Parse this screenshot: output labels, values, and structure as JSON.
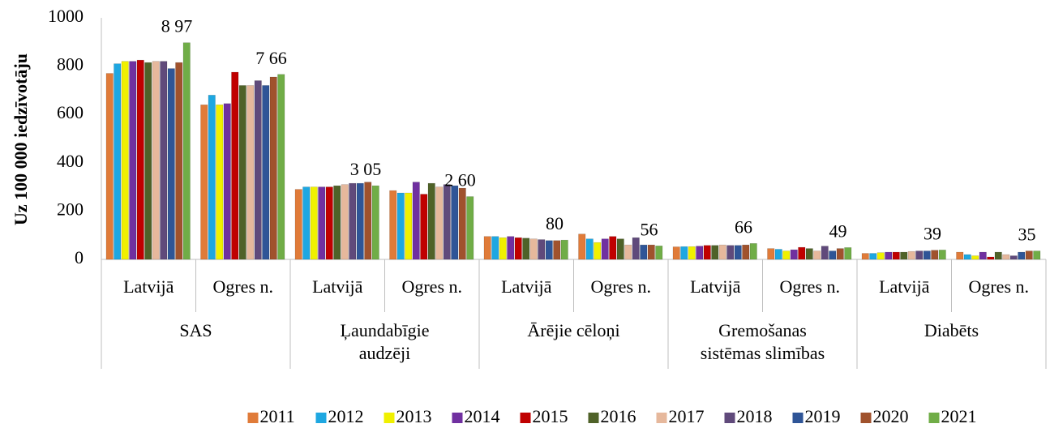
{
  "chart_data": {
    "type": "bar",
    "y_label": "Uz 100 000 iedzīvotāju",
    "categories": [
      "Latvijā",
      "Ogres n.",
      "Latvijā",
      "Ogres n.",
      "Latvijā",
      "Ogres n.",
      "Latvijā",
      "Ogres n.",
      "Latvijā",
      "Ogres n."
    ],
    "groups": [
      [
        "SAS"
      ],
      [
        "Ļaundabīgie",
        "audzēji"
      ],
      [
        "Ārējie cēloņi"
      ],
      [
        "Gremošanas",
        "sistēmas slimības"
      ],
      [
        "Diabēts"
      ]
    ],
    "series": [
      {
        "name": "2011",
        "color": "#e07b39",
        "values": [
          770,
          640,
          290,
          285,
          95,
          105,
          52,
          45,
          25,
          30
        ]
      },
      {
        "name": "2012",
        "color": "#1ea7e1",
        "values": [
          810,
          680,
          300,
          275,
          95,
          85,
          53,
          42,
          25,
          20
        ]
      },
      {
        "name": "2013",
        "color": "#f0f000",
        "values": [
          820,
          640,
          300,
          275,
          90,
          70,
          53,
          35,
          28,
          15
        ]
      },
      {
        "name": "2014",
        "color": "#7030a0",
        "values": [
          820,
          645,
          300,
          320,
          95,
          85,
          55,
          40,
          30,
          30
        ]
      },
      {
        "name": "2015",
        "color": "#c00000",
        "values": [
          825,
          775,
          300,
          270,
          90,
          95,
          58,
          50,
          30,
          10
        ]
      },
      {
        "name": "2016",
        "color": "#4f6228",
        "values": [
          815,
          720,
          305,
          315,
          88,
          85,
          58,
          45,
          30,
          30
        ]
      },
      {
        "name": "2017",
        "color": "#e6b89c",
        "values": [
          820,
          720,
          310,
          300,
          85,
          60,
          60,
          35,
          33,
          20
        ]
      },
      {
        "name": "2018",
        "color": "#604a7b",
        "values": [
          820,
          740,
          315,
          310,
          82,
          90,
          58,
          55,
          35,
          15
        ]
      },
      {
        "name": "2019",
        "color": "#2f5597",
        "values": [
          790,
          720,
          315,
          305,
          78,
          60,
          58,
          35,
          35,
          30
        ]
      },
      {
        "name": "2020",
        "color": "#a0522d",
        "values": [
          815,
          755,
          320,
          295,
          78,
          60,
          60,
          45,
          38,
          35
        ]
      },
      {
        "name": "2021",
        "color": "#70ad47",
        "values": [
          897,
          766,
          305,
          260,
          80,
          56,
          66,
          49,
          39,
          35
        ],
        "value_labels": [
          "8 97",
          "7 66",
          "3 05",
          "2 60",
          "80",
          "56",
          "66",
          "49",
          "39",
          "35"
        ]
      }
    ],
    "ylim": [
      0,
      1000
    ],
    "yticks": [
      0,
      200,
      400,
      600,
      800,
      1000
    ],
    "grid": false,
    "legend": "bottom"
  }
}
